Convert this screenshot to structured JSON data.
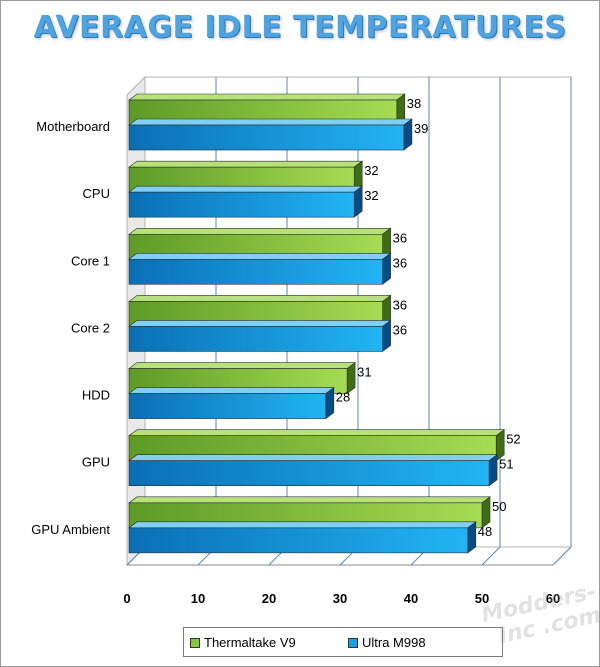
{
  "chart_data": {
    "type": "bar",
    "orientation": "horizontal",
    "title": "AVERAGE IDLE TEMPERATURES",
    "categories": [
      "Motherboard",
      "CPU",
      "Core 1",
      "Core 2",
      "HDD",
      "GPU",
      "GPU Ambient"
    ],
    "series": [
      {
        "name": "Thermaltake V9",
        "values": [
          38,
          32,
          36,
          36,
          31,
          52,
          50
        ],
        "color": "#86c63f"
      },
      {
        "name": "Ultra M998",
        "values": [
          39,
          32,
          36,
          36,
          28,
          51,
          48
        ],
        "color": "#1aa0e6"
      }
    ],
    "xlim": [
      0,
      60
    ],
    "xticks": [
      "0",
      "10",
      "20",
      "30",
      "40",
      "50",
      "60"
    ],
    "grid": true,
    "legend_position": "bottom",
    "three_d": true
  },
  "watermark": "Modders-Inc .com"
}
